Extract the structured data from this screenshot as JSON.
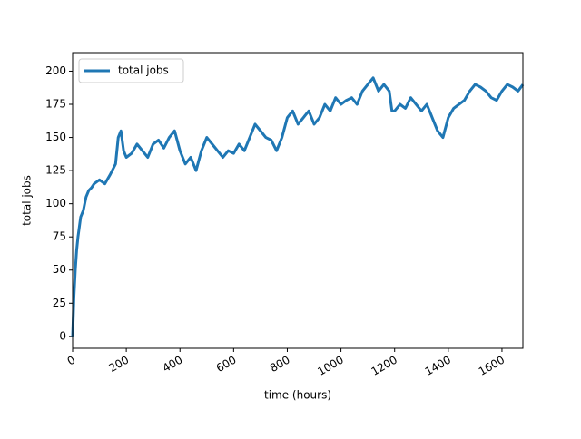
{
  "chart_data": {
    "type": "line",
    "xlabel": "time (hours)",
    "ylabel": "total jobs",
    "x": [
      0,
      5,
      10,
      15,
      20,
      30,
      40,
      50,
      60,
      70,
      80,
      100,
      120,
      140,
      160,
      170,
      180,
      190,
      200,
      220,
      240,
      260,
      280,
      300,
      320,
      340,
      360,
      380,
      400,
      420,
      440,
      460,
      480,
      500,
      520,
      540,
      560,
      580,
      600,
      620,
      640,
      660,
      680,
      700,
      720,
      740,
      760,
      780,
      800,
      820,
      840,
      860,
      880,
      900,
      920,
      940,
      960,
      980,
      1000,
      1020,
      1040,
      1060,
      1080,
      1100,
      1120,
      1140,
      1160,
      1180,
      1190,
      1200,
      1220,
      1240,
      1260,
      1280,
      1300,
      1320,
      1340,
      1360,
      1380,
      1400,
      1420,
      1440,
      1460,
      1480,
      1500,
      1520,
      1540,
      1560,
      1580,
      1600,
      1620,
      1640,
      1660,
      1678
    ],
    "series": [
      {
        "name": "total jobs",
        "color": "#1f77b4",
        "values": [
          0,
          30,
          50,
          65,
          75,
          90,
          95,
          105,
          110,
          112,
          115,
          118,
          115,
          122,
          130,
          150,
          155,
          140,
          135,
          138,
          145,
          140,
          135,
          145,
          148,
          142,
          150,
          155,
          140,
          130,
          135,
          125,
          140,
          150,
          145,
          140,
          135,
          140,
          138,
          145,
          140,
          150,
          160,
          155,
          150,
          148,
          140,
          150,
          165,
          170,
          160,
          165,
          170,
          160,
          165,
          175,
          170,
          180,
          175,
          178,
          180,
          175,
          185,
          190,
          195,
          185,
          190,
          185,
          170,
          170,
          175,
          172,
          180,
          175,
          170,
          175,
          165,
          155,
          150,
          165,
          172,
          175,
          178,
          185,
          190,
          188,
          185,
          180,
          178,
          185,
          190,
          188,
          185,
          190
        ]
      }
    ],
    "xlim": [
      0,
      1678
    ],
    "ylim": [
      -9,
      214
    ],
    "xticks": [
      0,
      200,
      400,
      600,
      800,
      1000,
      1200,
      1400,
      1600
    ],
    "yticks": [
      0,
      25,
      50,
      75,
      100,
      125,
      150,
      175,
      200
    ],
    "legend": "upper left"
  }
}
